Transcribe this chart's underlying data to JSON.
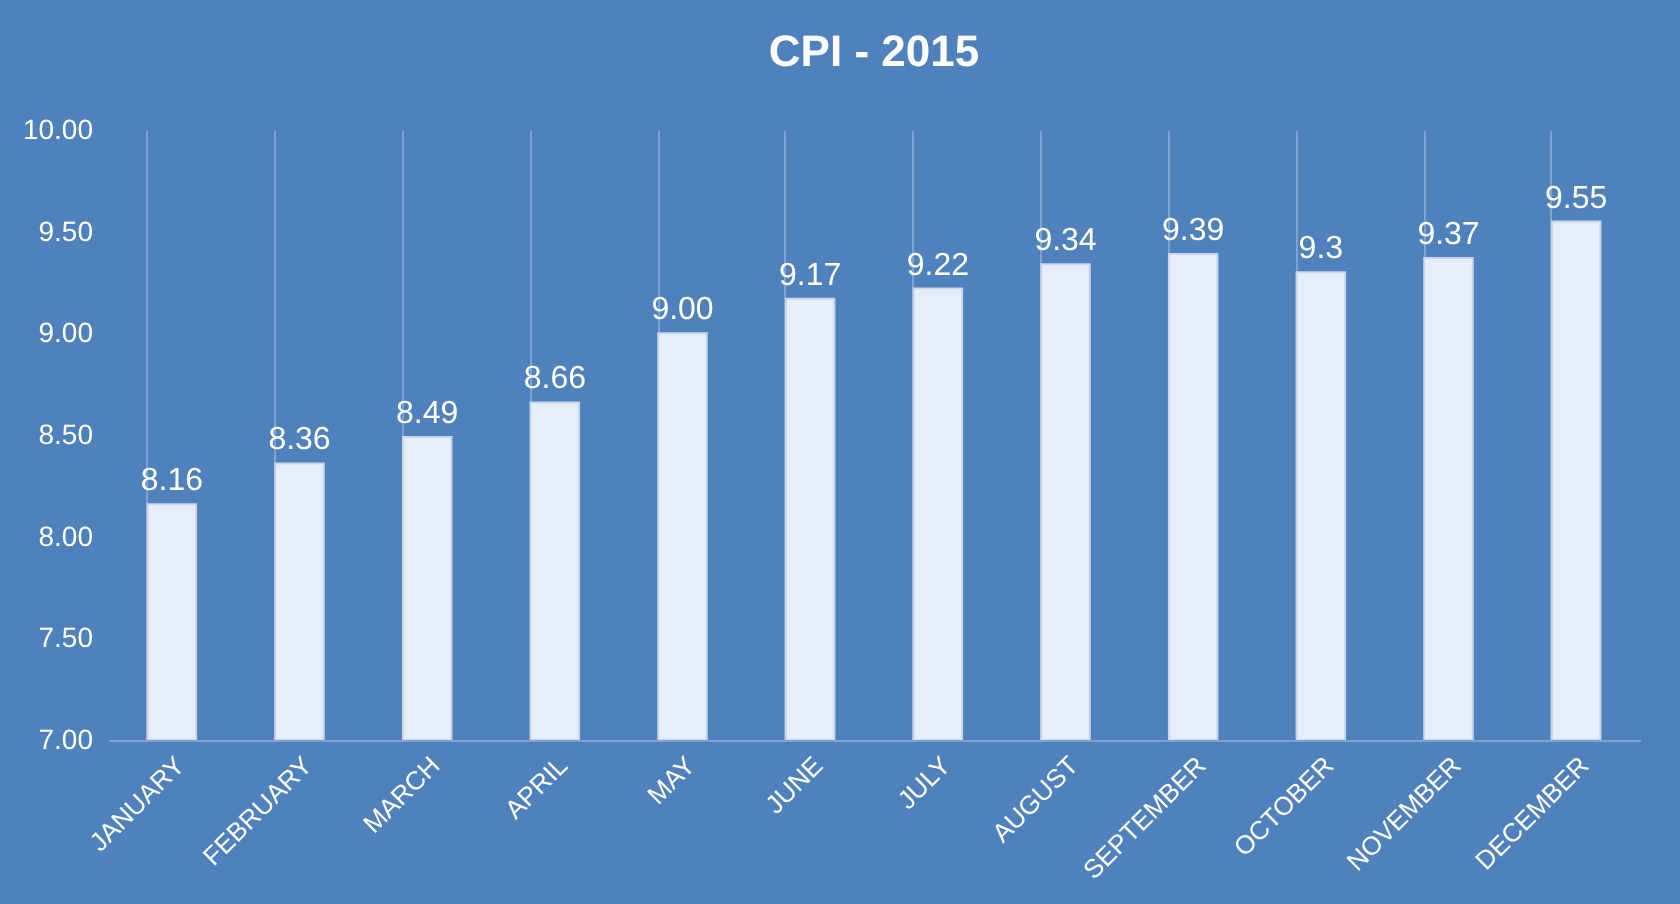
{
  "chart_data": {
    "type": "bar",
    "title": "CPI - 2015",
    "categories": [
      "JANUARY",
      "FEBRUARY",
      "MARCH",
      "APRIL",
      "MAY",
      "JUNE",
      "JULY",
      "AUGUST",
      "SEPTEMBER",
      "OCTOBER",
      "NOVEMBER",
      "DECEMBER"
    ],
    "values": [
      8.16,
      8.36,
      8.49,
      8.66,
      9.0,
      9.17,
      9.22,
      9.34,
      9.39,
      9.3,
      9.37,
      9.55
    ],
    "value_labels": [
      "8.16",
      "8.36",
      "8.49",
      "8.66",
      "9.00",
      "9.17",
      "9.22",
      "9.34",
      "9.39",
      "9.3",
      "9.37",
      "9.55"
    ],
    "color": "#e8eef7",
    "ylim": [
      7,
      10
    ],
    "yticks": [
      {
        "value": 7,
        "label": "7.00"
      },
      {
        "value": 7.5,
        "label": "7.50"
      },
      {
        "value": 8,
        "label": "8.00"
      },
      {
        "value": 8.5,
        "label": "8.50"
      },
      {
        "value": 9,
        "label": "9.00"
      },
      {
        "value": 9.5,
        "label": "9.50"
      },
      {
        "value": 10,
        "label": "10.00"
      }
    ],
    "grid": "x"
  }
}
